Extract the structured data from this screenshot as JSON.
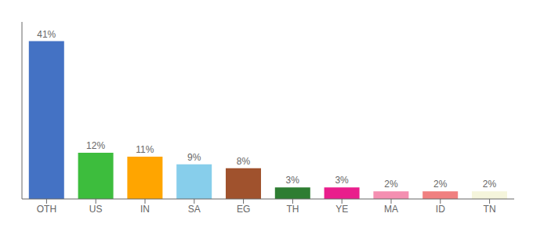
{
  "chart_data": {
    "type": "bar",
    "categories": [
      "OTH",
      "US",
      "IN",
      "SA",
      "EG",
      "TH",
      "YE",
      "MA",
      "ID",
      "TN"
    ],
    "values": [
      41,
      12,
      11,
      9,
      8,
      3,
      3,
      2,
      2,
      2
    ],
    "value_labels": [
      "41%",
      "12%",
      "11%",
      "9%",
      "8%",
      "3%",
      "3%",
      "2%",
      "2%",
      "2%"
    ],
    "data_labels": true,
    "colors": [
      "#4472C4",
      "#3DBD3D",
      "#FFA500",
      "#87CEEB",
      "#A0522D",
      "#2E7D32",
      "#E91E8C",
      "#F48FB1",
      "#F08080",
      "#F5F5DC"
    ],
    "ylim": [
      0,
      46
    ],
    "grid": false,
    "tick_labels": "x"
  }
}
